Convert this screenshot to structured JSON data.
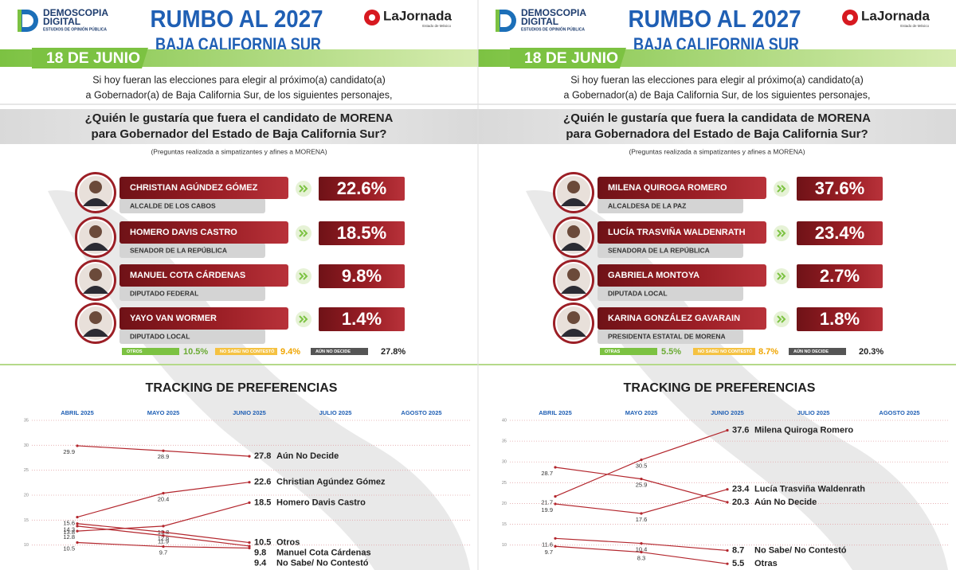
{
  "panels": [
    {
      "header": {
        "logo": "DEMOSCOPIA",
        "logo2": "DIGITAL",
        "logo_tagline": "ESTUDIOS DE OPINIÓN PÚBLICA",
        "title": "RUMBO AL 2027",
        "subtitle": "BAJA CALIFORNIA SUR",
        "brand": "LaJornada",
        "brand_tagline": "Estado de México",
        "date": "18 DE JUNIO"
      },
      "intro": [
        "Si hoy fueran las elecciones para elegir al próximo(a) candidato(a)",
        "a Gobernador(a) de Baja California Sur, de los siguientes personajes,"
      ],
      "question": [
        "¿Quién le gustaría que fuera el candidato de MORENA",
        "para Gobernador del Estado de Baja California Sur?"
      ],
      "note": "(Preguntas realizada a simpatizantes y afines a MORENA)",
      "candidates": [
        {
          "name": "CHRISTIAN AGÚNDEZ GÓMEZ",
          "role": "ALCALDE DE LOS CABOS",
          "share": "22.6%"
        },
        {
          "name": "HOMERO DAVIS CASTRO",
          "role": "SENADOR DE LA REPÚBLICA",
          "share": "18.5%"
        },
        {
          "name": "MANUEL COTA CÁRDENAS",
          "role": "DIPUTADO FEDERAL",
          "share": "9.8%"
        },
        {
          "name": "YAYO VAN WORMER",
          "role": "DIPUTADO LOCAL",
          "share": "1.4%"
        }
      ],
      "others": [
        {
          "label": "OTROS",
          "share": "10.5%"
        },
        {
          "label": "NO SABE/ NO CONTESTÓ",
          "share": "9.4%"
        },
        {
          "label": "AÚN NO DECIDE",
          "share": "27.8%"
        }
      ],
      "tracking_title": "TRACKING DE PREFERENCIAS"
    },
    {
      "header": {
        "logo": "DEMOSCOPIA",
        "logo2": "DIGITAL",
        "logo_tagline": "ESTUDIOS DE OPINIÓN PÚBLICA",
        "title": "RUMBO AL 2027",
        "subtitle": "BAJA CALIFORNIA SUR",
        "brand": "LaJornada",
        "brand_tagline": "Estado de México",
        "date": "18 DE JUNIO"
      },
      "intro": [
        "Si hoy fueran las elecciones para elegir al próximo(a) candidato(a)",
        "a Gobernador(a) de Baja California Sur, de los siguientes personajes,"
      ],
      "question": [
        "¿Quién le gustaría que fuera la candidata de MORENA",
        "para Gobernadora del Estado de Baja California Sur?"
      ],
      "note": "(Preguntas realizada a simpatizantes y afines a MORENA)",
      "candidates": [
        {
          "name": "MILENA QUIROGA ROMERO",
          "role": "ALCALDESA DE LA PAZ",
          "share": "37.6%"
        },
        {
          "name": "LUCÍA TRASVIÑA WALDENRATH",
          "role": "SENADORA DE LA REPÚBLICA",
          "share": "23.4%"
        },
        {
          "name": "GABRIELA MONTOYA",
          "role": "DIPUTADA LOCAL",
          "share": "2.7%"
        },
        {
          "name": "KARINA GONZÁLEZ GAVARAIN",
          "role": "PRESIDENTA ESTATAL DE MORENA",
          "share": "1.8%"
        }
      ],
      "others": [
        {
          "label": "OTRAS",
          "share": "5.5%"
        },
        {
          "label": "NO SABE/ NO CONTESTÓ",
          "share": "8.7%"
        },
        {
          "label": "AÚN NO DECIDE",
          "share": "20.3%"
        }
      ],
      "tracking_title": "TRACKING DE PREFERENCIAS"
    }
  ],
  "chart_data": [
    {
      "type": "line",
      "categories": [
        "ABRIL 2025",
        "MAYO 2025",
        "JUNIO 2025",
        "JULIO 2025",
        "AGOSTO 2025"
      ],
      "ylim": [
        5,
        35
      ],
      "yticks": [
        10,
        15,
        20,
        25,
        30,
        35
      ],
      "grid": true,
      "series": [
        {
          "name": "Aún No Decide",
          "color": "#b3262d",
          "values": [
            29.9,
            28.9,
            27.8,
            null,
            null
          ]
        },
        {
          "name": "Christian Agúndez Gómez",
          "color": "#b3262d",
          "values": [
            15.6,
            20.4,
            22.6,
            null,
            null
          ]
        },
        {
          "name": "Homero Davis Castro",
          "color": "#b3262d",
          "values": [
            12.8,
            13.8,
            18.5,
            null,
            null
          ]
        },
        {
          "name": "Otros",
          "color": "#b3262d",
          "values": [
            14.3,
            12.6,
            10.5,
            null,
            null
          ]
        },
        {
          "name": "Manuel Cota Cárdenas",
          "color": "#b3262d",
          "values": [
            13.8,
            11.9,
            9.8,
            null,
            null
          ]
        },
        {
          "name": "No Sabe/ No Contestó",
          "color": "#b3262d",
          "values": [
            10.5,
            9.7,
            9.4,
            null,
            null
          ]
        }
      ]
    },
    {
      "type": "line",
      "categories": [
        "ABRIL 2025",
        "MAYO 2025",
        "JUNIO 2025",
        "JULIO 2025",
        "AGOSTO 2025"
      ],
      "ylim": [
        4,
        40
      ],
      "yticks": [
        10,
        15,
        20,
        25,
        30,
        35,
        40
      ],
      "grid": true,
      "series": [
        {
          "name": "Milena Quiroga Romero",
          "color": "#b3262d",
          "values": [
            21.7,
            30.5,
            37.6,
            null,
            null
          ]
        },
        {
          "name": "Lucía Trasviña Waldenrath",
          "color": "#b3262d",
          "values": [
            19.9,
            17.6,
            23.4,
            null,
            null
          ]
        },
        {
          "name": "Aún No Decide",
          "color": "#b3262d",
          "values": [
            28.7,
            25.9,
            20.3,
            null,
            null
          ]
        },
        {
          "name": "No Sabe/ No Contestó",
          "color": "#b3262d",
          "values": [
            11.6,
            10.4,
            8.7,
            null,
            null
          ]
        },
        {
          "name": "Otras",
          "color": "#b3262d",
          "values": [
            9.7,
            8.3,
            5.5,
            null,
            null
          ]
        }
      ]
    }
  ]
}
